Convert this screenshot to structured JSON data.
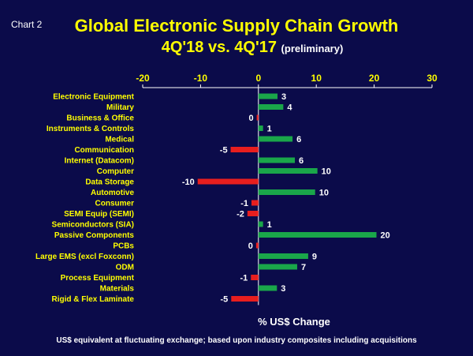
{
  "chart_label": "Chart 2",
  "title_line1": "Global Electronic Supply Chain Growth",
  "title_line2": "4Q'18 vs. 4Q'17",
  "title_note": "(preliminary)",
  "footnote": "US$ equivalent at fluctuating exchange; based upon industry composites  including acquisitions",
  "colors": {
    "background": "#0b0b4a",
    "positive": "#1aa64a",
    "negative": "#e81e1e",
    "category_text": "#ffff00",
    "title_text": "#ffff00",
    "value_text": "#ffffff"
  },
  "chart_data": {
    "type": "bar",
    "orientation": "horizontal",
    "xlabel": "% US$ Change",
    "xlim": [
      -20,
      30
    ],
    "xticks": [
      -20,
      -10,
      0,
      10,
      20,
      30
    ],
    "tick_position": "top",
    "grid": false,
    "categories": [
      "Electronic Equipment",
      "Military",
      "Business & Office",
      "Instruments & Controls",
      "Medical",
      "Communication",
      "Internet (Datacom)",
      "Computer",
      "Data Storage",
      "Automotive",
      "Consumer",
      "SEMI Equip (SEMI)",
      "Semiconductors (SIA)",
      "Passive Components",
      "PCBs",
      "Large EMS (excl Foxconn)",
      "ODM",
      "Process Equipment",
      "Materials",
      "Rigid & Flex Laminate"
    ],
    "values": [
      3,
      4,
      0,
      1,
      6,
      -5,
      6,
      10,
      -10,
      10,
      -1,
      -2,
      1,
      20,
      0,
      9,
      7,
      -1,
      3,
      -5
    ],
    "value_labels": [
      "3",
      "4",
      "0",
      "1",
      "6",
      "-5",
      "6",
      "10",
      "-10",
      "10",
      "-1",
      "-2",
      "1",
      "20",
      "0",
      "9",
      "7",
      "-1",
      "3",
      "-5"
    ],
    "exact_values": [
      3.3,
      4.3,
      -0.3,
      0.8,
      5.9,
      -4.8,
      6.3,
      10.2,
      -10.5,
      9.8,
      -1.2,
      -1.9,
      0.8,
      20.4,
      -0.4,
      8.6,
      6.7,
      -1.3,
      3.2,
      -4.7
    ]
  }
}
